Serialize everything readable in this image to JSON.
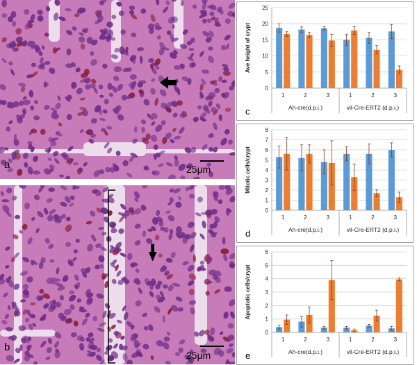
{
  "micrographs": [
    {
      "letter": "a",
      "scale_bar": "25μm",
      "arrow": "arrow-left"
    },
    {
      "letter": "b",
      "scale_bar": "25μm",
      "arrow": "arrow-down"
    }
  ],
  "colors": {
    "series_a": "#5b9bd5",
    "series_b": "#ed7d31",
    "error_bar": "#7a3a18",
    "tissue": "#c77bb8",
    "nuclei": "#6d2d86"
  },
  "chart_data": [
    {
      "type": "bar",
      "letter": "c",
      "title": "",
      "ylabel": "Ave height of crypt",
      "categories": [
        "1",
        "2",
        "3",
        "1",
        "2",
        "3"
      ],
      "groups": [
        "Ah-cre(d.p.i.)",
        "vil-Cre-ERT2 (d.p.i.)"
      ],
      "ylim": [
        0,
        25
      ],
      "yticks": [
        0,
        5,
        10,
        15,
        20,
        25
      ],
      "grid": true,
      "legend": "none",
      "series": [
        {
          "values": [
            18.7,
            18.2,
            18.6,
            15.0,
            15.6,
            17.6
          ],
          "errors": [
            1.3,
            0.8,
            0.5,
            1.7,
            1.7,
            2.2
          ]
        },
        {
          "values": [
            16.8,
            16.5,
            14.8,
            17.9,
            11.9,
            5.7
          ],
          "errors": [
            0.7,
            0.8,
            1.9,
            1.2,
            1.3,
            1.2
          ]
        }
      ]
    },
    {
      "type": "bar",
      "letter": "d",
      "title": "",
      "ylabel": "Mitotic cells/crypt",
      "categories": [
        "1",
        "2",
        "3",
        "1",
        "2",
        "3"
      ],
      "groups": [
        "Ah-cre(d.p.i.)",
        "vil-Cre-ERT2 (d.p.i.)"
      ],
      "ylim": [
        0,
        8
      ],
      "yticks": [
        0,
        1,
        2,
        3,
        4,
        5,
        6,
        7,
        8
      ],
      "grid": true,
      "legend": "none",
      "series": [
        {
          "values": [
            5.3,
            5.2,
            4.8,
            5.6,
            5.6,
            6.0
          ],
          "errors": [
            1.1,
            1.3,
            1.2,
            0.7,
            1.0,
            0.7
          ]
        },
        {
          "values": [
            5.6,
            5.6,
            4.7,
            3.3,
            1.7,
            1.3
          ],
          "errors": [
            1.6,
            0.9,
            2.2,
            1.3,
            0.35,
            0.5
          ]
        }
      ]
    },
    {
      "type": "bar",
      "letter": "e",
      "title": "",
      "ylabel": "Apoptotic cells/crypt",
      "categories": [
        "1",
        "2",
        "3",
        "1",
        "2",
        "3"
      ],
      "groups": [
        "Ah-cre(d.p.i.)",
        "vil-Cre-ERT2 (d.p.i.)"
      ],
      "ylim": [
        0,
        6
      ],
      "yticks": [
        0,
        1,
        2,
        3,
        4,
        5,
        6
      ],
      "grid": true,
      "legend": "none",
      "series": [
        {
          "values": [
            0.4,
            0.8,
            0.35,
            0.35,
            0.5,
            0.3
          ],
          "errors": [
            0.15,
            0.4,
            0.1,
            0.1,
            0.1,
            0.15
          ]
        },
        {
          "values": [
            0.95,
            1.3,
            3.9,
            0.15,
            1.25,
            3.95
          ],
          "errors": [
            0.35,
            0.6,
            1.45,
            0.1,
            0.4,
            0.1
          ]
        }
      ]
    }
  ]
}
